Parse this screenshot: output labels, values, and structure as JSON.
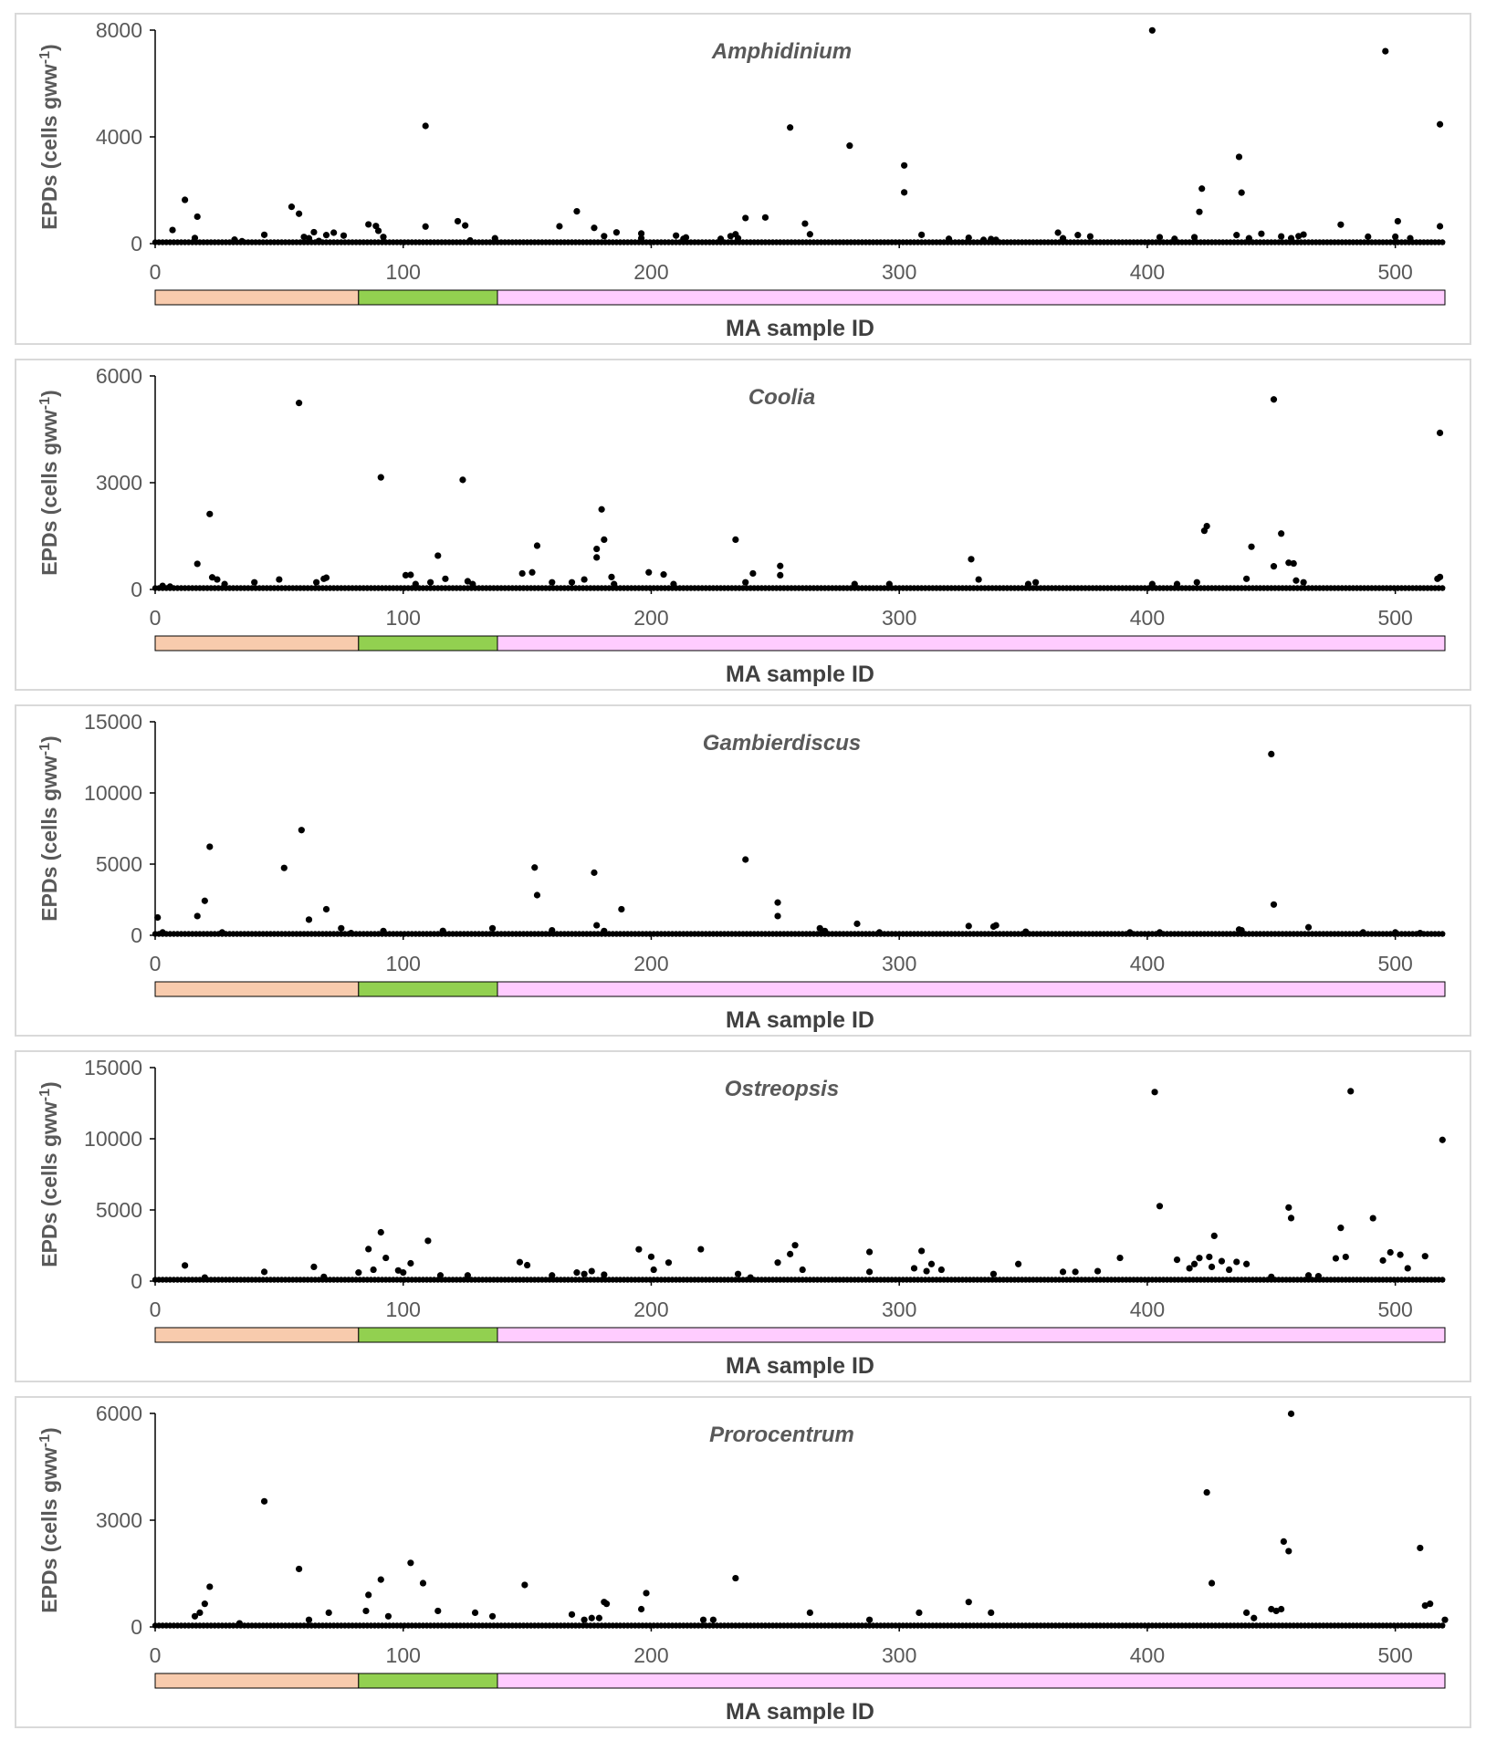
{
  "chart_data": [
    {
      "type": "scatter",
      "title": "Amphidinium",
      "xlabel": "MA sample ID",
      "ylabel": "EPDs (cells gww",
      "ylabel_sup": "-1",
      "ylabel_close": ")",
      "xlim": [
        0,
        520
      ],
      "ylim": [
        0,
        8000
      ],
      "xticks": [
        "0",
        "100",
        "200",
        "300",
        "400",
        "500"
      ],
      "yticks": [
        "0",
        "4000",
        "8000"
      ],
      "group_bar": [
        {
          "from": 0,
          "to": 82,
          "color": "#f8cbad"
        },
        {
          "from": 82,
          "to": 138,
          "color": "#92d050"
        },
        {
          "from": 138,
          "to": 520,
          "color": "#ffccff"
        }
      ],
      "points": [
        [
          7,
          510
        ],
        [
          12,
          1640
        ],
        [
          17,
          1010
        ],
        [
          16,
          210
        ],
        [
          32,
          150
        ],
        [
          35,
          90
        ],
        [
          44,
          330
        ],
        [
          55,
          1380
        ],
        [
          58,
          1120
        ],
        [
          60,
          250
        ],
        [
          62,
          200
        ],
        [
          64,
          430
        ],
        [
          66,
          100
        ],
        [
          69,
          320
        ],
        [
          72,
          410
        ],
        [
          76,
          300
        ],
        [
          86,
          720
        ],
        [
          89,
          660
        ],
        [
          90,
          480
        ],
        [
          92,
          250
        ],
        [
          109,
          4410
        ],
        [
          109,
          640
        ],
        [
          122,
          840
        ],
        [
          125,
          680
        ],
        [
          127,
          120
        ],
        [
          137,
          200
        ],
        [
          163,
          650
        ],
        [
          170,
          1210
        ],
        [
          177,
          590
        ],
        [
          181,
          280
        ],
        [
          186,
          420
        ],
        [
          196,
          380
        ],
        [
          196,
          200
        ],
        [
          210,
          300
        ],
        [
          213,
          180
        ],
        [
          214,
          230
        ],
        [
          228,
          180
        ],
        [
          232,
          280
        ],
        [
          234,
          350
        ],
        [
          238,
          960
        ],
        [
          235,
          200
        ],
        [
          246,
          980
        ],
        [
          256,
          4350
        ],
        [
          262,
          750
        ],
        [
          264,
          350
        ],
        [
          280,
          3670
        ],
        [
          302,
          1920
        ],
        [
          302,
          2930
        ],
        [
          309,
          330
        ],
        [
          320,
          180
        ],
        [
          328,
          220
        ],
        [
          334,
          140
        ],
        [
          337,
          170
        ],
        [
          339,
          140
        ],
        [
          364,
          410
        ],
        [
          366,
          200
        ],
        [
          372,
          320
        ],
        [
          377,
          270
        ],
        [
          402,
          7990
        ],
        [
          405,
          240
        ],
        [
          411,
          180
        ],
        [
          419,
          240
        ],
        [
          421,
          1190
        ],
        [
          422,
          2060
        ],
        [
          436,
          320
        ],
        [
          437,
          3250
        ],
        [
          438,
          1910
        ],
        [
          441,
          200
        ],
        [
          446,
          370
        ],
        [
          454,
          270
        ],
        [
          458,
          200
        ],
        [
          461,
          280
        ],
        [
          463,
          340
        ],
        [
          478,
          710
        ],
        [
          489,
          260
        ],
        [
          496,
          7210
        ],
        [
          500,
          260
        ],
        [
          501,
          840
        ],
        [
          506,
          200
        ],
        [
          518,
          4470
        ],
        [
          518,
          650
        ]
      ]
    },
    {
      "type": "scatter",
      "title": "Coolia",
      "xlabel": "MA sample ID",
      "ylabel": "EPDs (cells gww",
      "ylabel_sup": "-1",
      "ylabel_close": ")",
      "xlim": [
        0,
        520
      ],
      "ylim": [
        0,
        6000
      ],
      "xticks": [
        "0",
        "100",
        "200",
        "300",
        "400",
        "500"
      ],
      "yticks": [
        "0",
        "3000",
        "6000"
      ],
      "group_bar": [
        {
          "from": 0,
          "to": 82,
          "color": "#f8cbad"
        },
        {
          "from": 82,
          "to": 138,
          "color": "#92d050"
        },
        {
          "from": 138,
          "to": 520,
          "color": "#ffccff"
        }
      ],
      "points": [
        [
          3,
          100
        ],
        [
          6,
          80
        ],
        [
          17,
          720
        ],
        [
          22,
          2120
        ],
        [
          23,
          340
        ],
        [
          25,
          280
        ],
        [
          28,
          150
        ],
        [
          40,
          200
        ],
        [
          50,
          280
        ],
        [
          58,
          5240
        ],
        [
          65,
          200
        ],
        [
          68,
          300
        ],
        [
          69,
          330
        ],
        [
          91,
          3150
        ],
        [
          101,
          400
        ],
        [
          103,
          410
        ],
        [
          105,
          150
        ],
        [
          111,
          200
        ],
        [
          114,
          950
        ],
        [
          117,
          300
        ],
        [
          124,
          3080
        ],
        [
          126,
          230
        ],
        [
          128,
          150
        ],
        [
          148,
          450
        ],
        [
          152,
          480
        ],
        [
          154,
          1230
        ],
        [
          160,
          200
        ],
        [
          168,
          200
        ],
        [
          173,
          280
        ],
        [
          178,
          1140
        ],
        [
          178,
          900
        ],
        [
          180,
          2250
        ],
        [
          181,
          1400
        ],
        [
          184,
          350
        ],
        [
          185,
          150
        ],
        [
          199,
          480
        ],
        [
          205,
          420
        ],
        [
          209,
          150
        ],
        [
          234,
          1400
        ],
        [
          238,
          200
        ],
        [
          241,
          450
        ],
        [
          252,
          660
        ],
        [
          252,
          400
        ],
        [
          282,
          150
        ],
        [
          296,
          150
        ],
        [
          329,
          850
        ],
        [
          332,
          280
        ],
        [
          352,
          150
        ],
        [
          355,
          200
        ],
        [
          402,
          150
        ],
        [
          412,
          150
        ],
        [
          420,
          200
        ],
        [
          423,
          1650
        ],
        [
          424,
          1780
        ],
        [
          440,
          300
        ],
        [
          442,
          1200
        ],
        [
          451,
          5340
        ],
        [
          451,
          650
        ],
        [
          454,
          1570
        ],
        [
          457,
          750
        ],
        [
          459,
          730
        ],
        [
          460,
          250
        ],
        [
          463,
          200
        ],
        [
          517,
          300
        ],
        [
          518,
          350
        ],
        [
          518,
          4400
        ]
      ]
    },
    {
      "type": "scatter",
      "title": "Gambierdiscus",
      "xlabel": "MA sample ID",
      "ylabel": "EPDs (cells gww",
      "ylabel_sup": "-1",
      "ylabel_close": ")",
      "xlim": [
        0,
        520
      ],
      "ylim": [
        0,
        15000
      ],
      "xticks": [
        "0",
        "100",
        "200",
        "300",
        "400",
        "500"
      ],
      "yticks": [
        "0",
        "5000",
        "10000",
        "15000"
      ],
      "group_bar": [
        {
          "from": 0,
          "to": 82,
          "color": "#f8cbad"
        },
        {
          "from": 82,
          "to": 138,
          "color": "#92d050"
        },
        {
          "from": 138,
          "to": 520,
          "color": "#ffccff"
        }
      ],
      "points": [
        [
          1,
          1250
        ],
        [
          3,
          200
        ],
        [
          17,
          1350
        ],
        [
          20,
          2420
        ],
        [
          22,
          6220
        ],
        [
          27,
          200
        ],
        [
          52,
          4730
        ],
        [
          59,
          7390
        ],
        [
          62,
          1100
        ],
        [
          69,
          1830
        ],
        [
          75,
          490
        ],
        [
          79,
          150
        ],
        [
          92,
          300
        ],
        [
          116,
          310
        ],
        [
          136,
          490
        ],
        [
          153,
          4760
        ],
        [
          154,
          2820
        ],
        [
          160,
          350
        ],
        [
          177,
          4400
        ],
        [
          178,
          700
        ],
        [
          181,
          300
        ],
        [
          188,
          1830
        ],
        [
          238,
          5320
        ],
        [
          251,
          2300
        ],
        [
          251,
          1350
        ],
        [
          268,
          490
        ],
        [
          270,
          300
        ],
        [
          283,
          810
        ],
        [
          292,
          200
        ],
        [
          328,
          650
        ],
        [
          338,
          610
        ],
        [
          339,
          700
        ],
        [
          351,
          250
        ],
        [
          393,
          200
        ],
        [
          405,
          200
        ],
        [
          437,
          400
        ],
        [
          438,
          350
        ],
        [
          450,
          12730
        ],
        [
          451,
          2160
        ],
        [
          465,
          560
        ],
        [
          487,
          200
        ],
        [
          500,
          200
        ],
        [
          510,
          150
        ]
      ]
    },
    {
      "type": "scatter",
      "title": "Ostreopsis",
      "xlabel": "MA sample ID",
      "ylabel": "EPDs (cells gww",
      "ylabel_sup": "-1",
      "ylabel_close": ")",
      "xlim": [
        0,
        520
      ],
      "ylim": [
        0,
        15000
      ],
      "xticks": [
        "0",
        "100",
        "200",
        "300",
        "400",
        "500"
      ],
      "yticks": [
        "0",
        "5000",
        "10000",
        "15000"
      ],
      "group_bar": [
        {
          "from": 0,
          "to": 82,
          "color": "#f8cbad"
        },
        {
          "from": 82,
          "to": 138,
          "color": "#92d050"
        },
        {
          "from": 138,
          "to": 520,
          "color": "#ffccff"
        }
      ],
      "points": [
        [
          12,
          1100
        ],
        [
          20,
          250
        ],
        [
          44,
          650
        ],
        [
          64,
          1000
        ],
        [
          68,
          300
        ],
        [
          82,
          600
        ],
        [
          86,
          2250
        ],
        [
          88,
          800
        ],
        [
          91,
          3430
        ],
        [
          93,
          1630
        ],
        [
          98,
          750
        ],
        [
          100,
          600
        ],
        [
          103,
          1250
        ],
        [
          110,
          2830
        ],
        [
          115,
          400
        ],
        [
          126,
          400
        ],
        [
          147,
          1330
        ],
        [
          150,
          1120
        ],
        [
          160,
          400
        ],
        [
          170,
          600
        ],
        [
          173,
          500
        ],
        [
          176,
          700
        ],
        [
          181,
          450
        ],
        [
          195,
          2230
        ],
        [
          200,
          1710
        ],
        [
          201,
          800
        ],
        [
          207,
          1300
        ],
        [
          220,
          2240
        ],
        [
          235,
          500
        ],
        [
          240,
          250
        ],
        [
          251,
          1300
        ],
        [
          256,
          1900
        ],
        [
          258,
          2520
        ],
        [
          261,
          800
        ],
        [
          288,
          2050
        ],
        [
          288,
          650
        ],
        [
          306,
          900
        ],
        [
          309,
          2120
        ],
        [
          311,
          700
        ],
        [
          313,
          1200
        ],
        [
          317,
          800
        ],
        [
          338,
          500
        ],
        [
          348,
          1200
        ],
        [
          366,
          650
        ],
        [
          371,
          650
        ],
        [
          380,
          700
        ],
        [
          389,
          1630
        ],
        [
          403,
          13280
        ],
        [
          405,
          5270
        ],
        [
          412,
          1500
        ],
        [
          417,
          900
        ],
        [
          419,
          1200
        ],
        [
          421,
          1620
        ],
        [
          425,
          1700
        ],
        [
          426,
          1000
        ],
        [
          427,
          3180
        ],
        [
          430,
          1400
        ],
        [
          433,
          800
        ],
        [
          436,
          1350
        ],
        [
          440,
          1200
        ],
        [
          450,
          300
        ],
        [
          457,
          5170
        ],
        [
          458,
          4430
        ],
        [
          465,
          400
        ],
        [
          469,
          350
        ],
        [
          476,
          1600
        ],
        [
          478,
          3740
        ],
        [
          480,
          1700
        ],
        [
          482,
          13340
        ],
        [
          491,
          4420
        ],
        [
          495,
          1450
        ],
        [
          498,
          2020
        ],
        [
          502,
          1850
        ],
        [
          505,
          900
        ],
        [
          512,
          1750
        ],
        [
          519,
          9920
        ]
      ]
    },
    {
      "type": "scatter",
      "title": "Prorocentrum",
      "xlabel": "MA sample ID",
      "ylabel": "EPDs (cells gww",
      "ylabel_sup": "-1",
      "ylabel_close": ")",
      "xlim": [
        0,
        520
      ],
      "ylim": [
        0,
        6000
      ],
      "xticks": [
        "0",
        "100",
        "200",
        "300",
        "400",
        "500"
      ],
      "yticks": [
        "0",
        "3000",
        "6000"
      ],
      "group_bar": [
        {
          "from": 0,
          "to": 82,
          "color": "#f8cbad"
        },
        {
          "from": 82,
          "to": 138,
          "color": "#92d050"
        },
        {
          "from": 138,
          "to": 520,
          "color": "#ffccff"
        }
      ],
      "points": [
        [
          16,
          300
        ],
        [
          18,
          400
        ],
        [
          20,
          650
        ],
        [
          22,
          1130
        ],
        [
          34,
          100
        ],
        [
          44,
          3530
        ],
        [
          58,
          1630
        ],
        [
          62,
          200
        ],
        [
          70,
          400
        ],
        [
          85,
          450
        ],
        [
          86,
          900
        ],
        [
          91,
          1330
        ],
        [
          94,
          300
        ],
        [
          103,
          1800
        ],
        [
          108,
          1230
        ],
        [
          114,
          450
        ],
        [
          129,
          400
        ],
        [
          136,
          300
        ],
        [
          149,
          1180
        ],
        [
          168,
          350
        ],
        [
          173,
          200
        ],
        [
          176,
          250
        ],
        [
          179,
          250
        ],
        [
          181,
          700
        ],
        [
          182,
          650
        ],
        [
          196,
          500
        ],
        [
          198,
          950
        ],
        [
          221,
          200
        ],
        [
          225,
          200
        ],
        [
          234,
          1370
        ],
        [
          264,
          400
        ],
        [
          288,
          200
        ],
        [
          308,
          400
        ],
        [
          328,
          700
        ],
        [
          337,
          400
        ],
        [
          424,
          3780
        ],
        [
          426,
          1230
        ],
        [
          440,
          400
        ],
        [
          443,
          250
        ],
        [
          450,
          500
        ],
        [
          452,
          450
        ],
        [
          454,
          500
        ],
        [
          455,
          2400
        ],
        [
          457,
          2130
        ],
        [
          458,
          5990
        ],
        [
          510,
          2220
        ],
        [
          512,
          600
        ],
        [
          514,
          650
        ],
        [
          520,
          200
        ]
      ]
    }
  ]
}
